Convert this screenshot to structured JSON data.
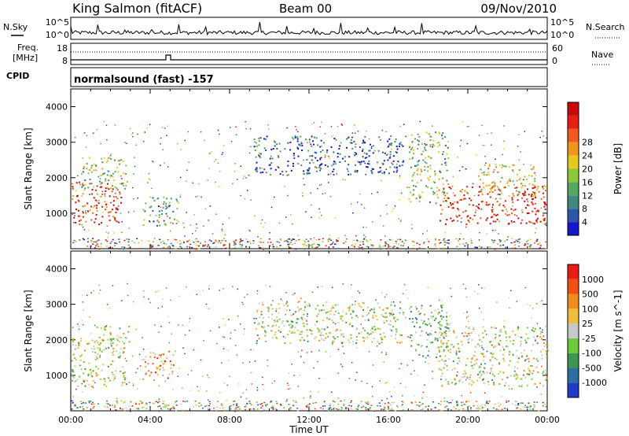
{
  "header": {
    "station": "King Salmon (fitACF)",
    "beam": "Beam 00",
    "date": "09/Nov/2010"
  },
  "top_panels": {
    "nsky_label": "N.Sky",
    "nsearch_label": "N.Search",
    "freq_label_1": "Freq.",
    "freq_label_2": "[MHz]",
    "nave_label": "Nave",
    "cpid_label": "CPID",
    "cpid_value": "normalsound (fast) -157",
    "noise_ticks_left": [
      "10^5",
      "10^0"
    ],
    "noise_ticks_right": [
      "10^5",
      "10^0"
    ],
    "freq_ticks": [
      "18",
      "8"
    ],
    "nave_ticks": [
      "60",
      "0"
    ]
  },
  "chart_data": [
    {
      "type": "heatmap",
      "panel": "power",
      "xlabel": "Time UT",
      "ylabel": "Slant Range [km]",
      "x_ticks": [
        "00:00",
        "04:00",
        "08:00",
        "12:00",
        "16:00",
        "20:00",
        "00:00"
      ],
      "xlim_hours": [
        0,
        24
      ],
      "ylim": [
        0,
        4500
      ],
      "y_ticks": [
        1000,
        2000,
        3000,
        4000
      ],
      "colorbar_label": "Power [dB]",
      "colorbar_ticks": [
        "4",
        "8",
        "12",
        "16",
        "20",
        "24",
        "28"
      ],
      "colorbar_colors": [
        "#1418c8",
        "#2d55a8",
        "#3f8a7d",
        "#55a860",
        "#8cc83c",
        "#e6c81e",
        "#f0961e",
        "#f05a1e",
        "#e61e14",
        "#c80a0a"
      ],
      "regions": [
        {
          "t0": 0.0,
          "t1": 2.6,
          "r0": 700,
          "r1": 1900,
          "level": 0.85
        },
        {
          "t0": 0.5,
          "t1": 3.0,
          "r0": 1700,
          "r1": 2600,
          "level": 0.45
        },
        {
          "t0": 3.6,
          "t1": 5.4,
          "r0": 650,
          "r1": 1500,
          "level": 0.3
        },
        {
          "t0": 9.2,
          "t1": 16.8,
          "r0": 2100,
          "r1": 3200,
          "level": 0.15
        },
        {
          "t0": 17.0,
          "t1": 19.0,
          "r0": 1300,
          "r1": 3300,
          "level": 0.4
        },
        {
          "t0": 18.5,
          "t1": 24.0,
          "r0": 700,
          "r1": 1800,
          "level": 0.85
        },
        {
          "t0": 20.5,
          "t1": 23.5,
          "r0": 1500,
          "r1": 2400,
          "level": 0.55
        }
      ]
    },
    {
      "type": "heatmap",
      "panel": "velocity",
      "xlabel": "Time UT",
      "ylabel": "Slant Range [km]",
      "x_ticks": [
        "00:00",
        "04:00",
        "08:00",
        "12:00",
        "16:00",
        "20:00",
        "00:00"
      ],
      "xlim_hours": [
        0,
        24
      ],
      "ylim": [
        0,
        4500
      ],
      "y_ticks": [
        1000,
        2000,
        3000,
        4000
      ],
      "colorbar_label": "Velocity [m s^-1]",
      "colorbar_ticks": [
        "1000",
        "500",
        "100",
        "25",
        "-25",
        "-100",
        "-500",
        "-1000"
      ],
      "colorbar_colors": [
        "#1e3cc8",
        "#2d6ea0",
        "#3c9650",
        "#6ec83c",
        "#c8c8c8",
        "#f0be3c",
        "#f08c1e",
        "#f05014",
        "#e61e14"
      ],
      "regions": [
        {
          "t0": 0.0,
          "t1": 2.8,
          "r0": 700,
          "r1": 2100,
          "level": 0.5
        },
        {
          "t0": 1.0,
          "t1": 3.0,
          "r0": 1900,
          "r1": 2400,
          "level": 0.5
        },
        {
          "t0": 3.6,
          "t1": 5.2,
          "r0": 900,
          "r1": 1700,
          "level": 0.72
        },
        {
          "t0": 9.2,
          "t1": 16.8,
          "r0": 1900,
          "r1": 3100,
          "level": 0.5
        },
        {
          "t0": 17.0,
          "t1": 19.0,
          "r0": 1500,
          "r1": 3000,
          "level": 0.35
        },
        {
          "t0": 18.5,
          "t1": 24.0,
          "r0": 700,
          "r1": 2400,
          "level": 0.5
        }
      ]
    }
  ]
}
